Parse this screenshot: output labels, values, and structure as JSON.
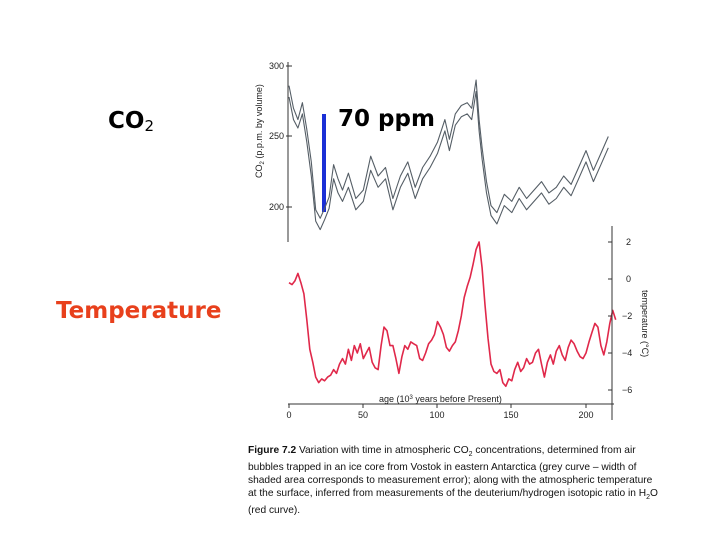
{
  "labels": {
    "co2_main": "CO",
    "co2_sub": "2",
    "temperature": "Temperature",
    "ppm": "70 ppm"
  },
  "colors": {
    "co2_curve": "#555e66",
    "temperature_curve": "#e0284a",
    "temperature_label": "#e8401c",
    "ppm_bar": "#1a2fd6"
  },
  "chart_data": [
    {
      "type": "line",
      "ylabel": "CO2 (p.p.m. by volume)",
      "ylim": [
        180,
        300
      ],
      "yticks": [
        "300",
        "250",
        "200"
      ],
      "xlim": [
        0,
        220
      ],
      "grid": false,
      "series": [
        {
          "x": [
            0,
            3,
            6,
            9,
            12,
            15,
            18,
            21,
            24,
            27,
            30,
            33,
            36,
            40,
            45,
            50,
            55,
            60,
            65,
            70,
            75,
            80,
            85,
            90,
            95,
            100,
            105,
            108,
            112,
            116,
            120,
            123,
            126,
            128,
            130,
            133,
            136,
            140,
            145,
            150,
            155,
            160,
            165,
            170,
            175,
            180,
            185,
            190,
            195,
            200,
            205,
            210,
            215
          ],
          "values": [
            286,
            270,
            262,
            274,
            255,
            232,
            198,
            192,
            199,
            207,
            230,
            220,
            212,
            224,
            206,
            212,
            236,
            222,
            228,
            206,
            222,
            232,
            214,
            228,
            236,
            246,
            262,
            248,
            266,
            272,
            274,
            270,
            290,
            262,
            242,
            218,
            201,
            196,
            209,
            204,
            214,
            206,
            212,
            218,
            210,
            214,
            222,
            216,
            228,
            240,
            226,
            238,
            250
          ]
        },
        {
          "x": [
            0,
            3,
            6,
            9,
            12,
            15,
            18,
            21,
            24,
            27,
            30,
            33,
            36,
            40,
            45,
            50,
            55,
            60,
            65,
            70,
            75,
            80,
            85,
            90,
            95,
            100,
            105,
            108,
            112,
            116,
            120,
            123,
            126,
            128,
            130,
            133,
            136,
            140,
            145,
            150,
            155,
            160,
            165,
            170,
            175,
            180,
            185,
            190,
            195,
            200,
            205,
            210,
            215
          ],
          "values": [
            278,
            262,
            256,
            266,
            246,
            222,
            190,
            184,
            191,
            199,
            220,
            210,
            204,
            214,
            198,
            204,
            226,
            214,
            220,
            198,
            214,
            224,
            206,
            220,
            228,
            238,
            254,
            240,
            258,
            264,
            266,
            262,
            282,
            254,
            234,
            210,
            194,
            188,
            201,
            196,
            206,
            198,
            204,
            210,
            202,
            206,
            214,
            208,
            220,
            232,
            218,
            230,
            242
          ]
        }
      ]
    },
    {
      "type": "line",
      "ylabel": "temperature (°C)",
      "xlabel": "age (10³ years before Present)",
      "ylim": [
        -7,
        2.5
      ],
      "yticks": [
        "2",
        "0",
        "−2",
        "−4",
        "−6"
      ],
      "xlim": [
        0,
        220
      ],
      "xticks": [
        "0",
        "50",
        "100",
        "150",
        "200"
      ],
      "grid": false,
      "series": [
        {
          "x": [
            0,
            2,
            4,
            6,
            8,
            10,
            12,
            14,
            16,
            18,
            20,
            22,
            24,
            26,
            28,
            30,
            32,
            34,
            36,
            38,
            40,
            42,
            44,
            46,
            48,
            50,
            52,
            54,
            56,
            58,
            60,
            62,
            64,
            66,
            68,
            70,
            72,
            74,
            76,
            78,
            80,
            82,
            84,
            86,
            88,
            90,
            92,
            94,
            96,
            98,
            100,
            102,
            104,
            106,
            108,
            110,
            112,
            114,
            116,
            118,
            120,
            122,
            124,
            126,
            128,
            130,
            132,
            134,
            136,
            138,
            140,
            142,
            144,
            146,
            148,
            150,
            152,
            154,
            156,
            158,
            160,
            162,
            164,
            166,
            168,
            170,
            172,
            174,
            176,
            178,
            180,
            182,
            184,
            186,
            188,
            190,
            192,
            194,
            196,
            198,
            200,
            202,
            204,
            206,
            208,
            210,
            212,
            214,
            216,
            218,
            220
          ],
          "values": [
            -0.2,
            -0.3,
            -0.1,
            0.3,
            -0.2,
            -0.8,
            -2.2,
            -3.8,
            -4.5,
            -5.3,
            -5.6,
            -5.4,
            -5.5,
            -5.3,
            -5.2,
            -4.9,
            -5.1,
            -4.6,
            -4.3,
            -4.6,
            -3.8,
            -4.4,
            -3.6,
            -4.0,
            -3.5,
            -4.3,
            -4.0,
            -3.7,
            -4.5,
            -4.8,
            -4.9,
            -3.6,
            -2.6,
            -2.8,
            -3.6,
            -3.6,
            -4.3,
            -5.1,
            -4.2,
            -3.6,
            -3.8,
            -3.4,
            -3.5,
            -3.6,
            -4.3,
            -4.4,
            -4.0,
            -3.5,
            -3.3,
            -3.0,
            -2.3,
            -2.6,
            -3.0,
            -3.7,
            -3.9,
            -3.6,
            -3.4,
            -2.8,
            -2.0,
            -1.0,
            -0.4,
            0.1,
            0.8,
            1.6,
            2.0,
            0.6,
            -1.4,
            -3.2,
            -4.6,
            -5.0,
            -5.1,
            -4.9,
            -5.6,
            -5.8,
            -5.4,
            -5.5,
            -4.9,
            -4.5,
            -5.0,
            -4.8,
            -4.3,
            -4.6,
            -4.5,
            -4.0,
            -3.8,
            -4.6,
            -5.3,
            -4.5,
            -4.1,
            -4.6,
            -3.9,
            -3.6,
            -4.1,
            -4.4,
            -3.7,
            -3.3,
            -3.5,
            -3.9,
            -4.2,
            -4.3,
            -4.0,
            -3.4,
            -2.9,
            -2.4,
            -2.6,
            -3.6,
            -4.1,
            -3.4,
            -2.4,
            -1.7,
            -2.2
          ]
        }
      ]
    }
  ],
  "co2_axis": {
    "title": "CO",
    "title_sub": "2",
    "title_rest": " (p.p.m. by volume)"
  },
  "temp_axis": {
    "title": "temperature (°C)"
  },
  "age_axis": {
    "title_a": "age (10",
    "title_sup": "3",
    "title_b": " years before Present)"
  },
  "caption": {
    "figure": "Figure 7.2",
    "text_a": "   Variation with time in atmospheric CO",
    "text_sub": "2",
    "text_b": " concentrations, determined from air bubbles trapped in an ice core from Vostok in eastern Antarctica (grey curve – width of shaded area corresponds to measurement error); along with the atmospheric temperature at the surface, inferred from measurements of the deuterium/hydrogen isotopic ratio in H",
    "text_sub2": "2",
    "text_c": "O (red curve)."
  }
}
